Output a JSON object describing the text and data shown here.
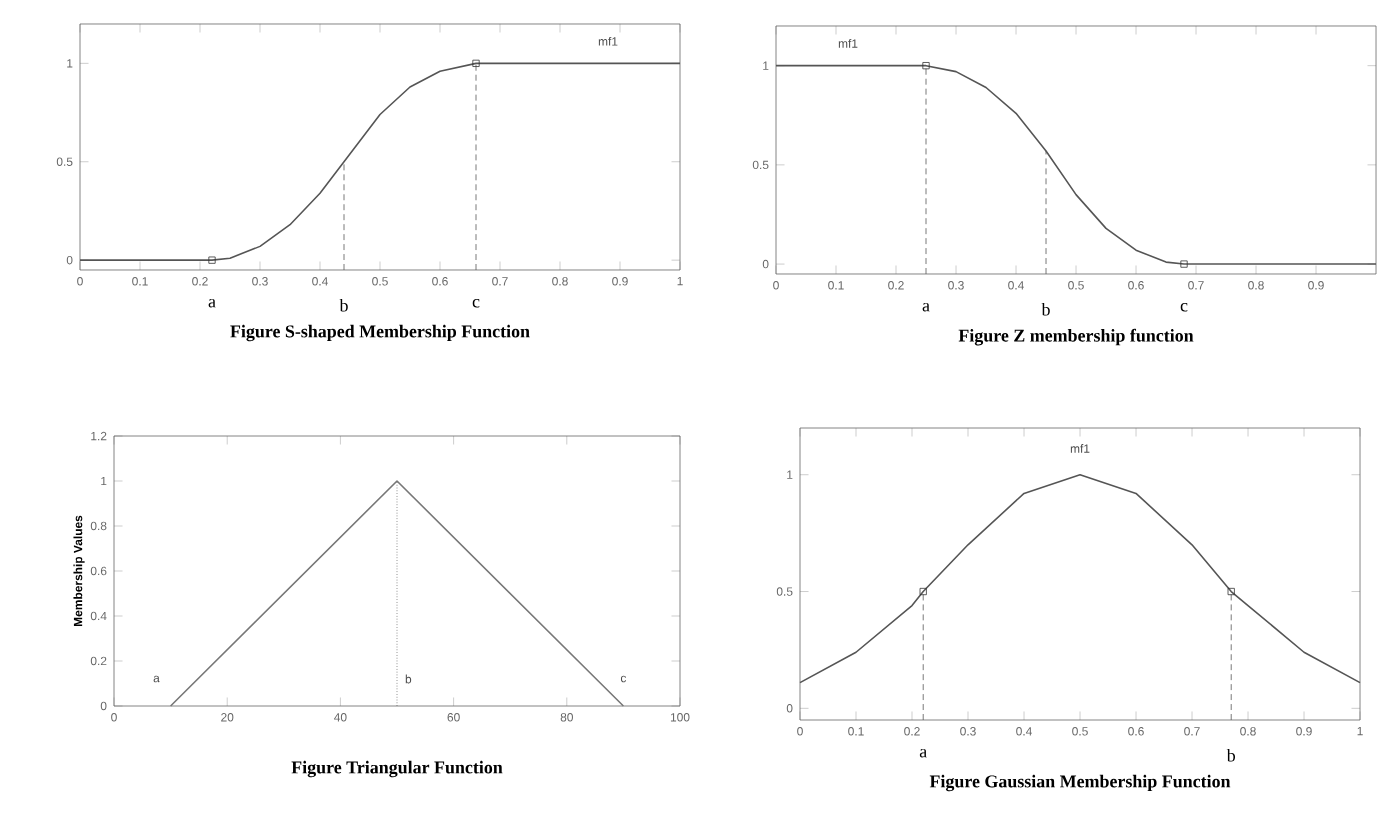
{
  "chart_data": [
    {
      "type": "line",
      "title": "Figure S-shaped Membership Function",
      "xlim": [
        0,
        1
      ],
      "ylim": [
        -0.05,
        1.2
      ],
      "xticks": [
        0,
        0.1,
        0.2,
        0.3,
        0.4,
        0.5,
        0.6,
        0.7,
        0.8,
        0.9,
        1
      ],
      "yticks": [
        0,
        0.5,
        1
      ],
      "series": [
        {
          "type": "line",
          "color": "#555555",
          "x": [
            0,
            0.22,
            0.25,
            0.3,
            0.35,
            0.4,
            0.44,
            0.5,
            0.55,
            0.6,
            0.66,
            1
          ],
          "values": [
            0,
            0,
            0.01,
            0.07,
            0.18,
            0.34,
            0.5,
            0.74,
            0.88,
            0.96,
            1,
            1
          ]
        },
        {
          "type": "scatter",
          "color": "#333333",
          "marker": "square",
          "x": [
            0.22,
            0.66
          ],
          "values": [
            0,
            1
          ]
        },
        {
          "type": "line",
          "color": "#555555",
          "line_style": "dashed",
          "x": [
            0.44,
            0.44
          ],
          "values": [
            -0.05,
            0.5
          ]
        },
        {
          "type": "line",
          "color": "#555555",
          "line_style": "dashed",
          "x": [
            0.66,
            0.66
          ],
          "values": [
            -0.05,
            1
          ]
        }
      ],
      "annotations": [
        "mf1",
        "a",
        "b",
        "c"
      ]
    },
    {
      "type": "line",
      "title": "Figure Z membership function",
      "xlim": [
        0,
        1
      ],
      "ylim": [
        -0.05,
        1.2
      ],
      "xticks": [
        0,
        0.1,
        0.2,
        0.3,
        0.4,
        0.5,
        0.6,
        0.7,
        0.8,
        0.9
      ],
      "yticks": [
        0,
        0.5,
        1
      ],
      "series": [
        {
          "type": "line",
          "color": "#555555",
          "x": [
            0,
            0.25,
            0.3,
            0.35,
            0.4,
            0.45,
            0.5,
            0.55,
            0.6,
            0.65,
            0.68,
            1
          ],
          "values": [
            1,
            1,
            0.97,
            0.89,
            0.76,
            0.57,
            0.35,
            0.18,
            0.07,
            0.01,
            0,
            0
          ]
        },
        {
          "type": "scatter",
          "color": "#333333",
          "marker": "square",
          "x": [
            0.25,
            0.68
          ],
          "values": [
            1,
            0
          ]
        },
        {
          "type": "line",
          "color": "#555555",
          "line_style": "dashed",
          "x": [
            0.25,
            0.25
          ],
          "values": [
            -0.05,
            1
          ]
        },
        {
          "type": "line",
          "color": "#555555",
          "line_style": "dashed",
          "x": [
            0.45,
            0.45
          ],
          "values": [
            -0.05,
            0.57
          ]
        }
      ],
      "annotations": [
        "mf1",
        "a",
        "b",
        "c"
      ]
    },
    {
      "type": "line",
      "title": "Figure Triangular Function",
      "ylabel": "Membership Values",
      "xlim": [
        0,
        100
      ],
      "ylim": [
        0,
        1.2
      ],
      "xticks": [
        0,
        20,
        40,
        60,
        80,
        100
      ],
      "yticks": [
        0,
        0.2,
        0.4,
        0.6,
        0.8,
        1,
        1.2
      ],
      "series": [
        {
          "type": "line",
          "color": "#777777",
          "x": [
            10,
            50,
            90
          ],
          "values": [
            0,
            1,
            0
          ]
        },
        {
          "type": "line",
          "color": "#555555",
          "line_style": "dotted",
          "x": [
            50,
            50
          ],
          "values": [
            0,
            1
          ]
        }
      ],
      "annotations": [
        "a",
        "b",
        "c"
      ]
    },
    {
      "type": "line",
      "title": "Figure Gaussian Membership Function",
      "xlim": [
        0,
        1
      ],
      "ylim": [
        -0.05,
        1.2
      ],
      "xticks": [
        0,
        0.1,
        0.2,
        0.3,
        0.4,
        0.5,
        0.6,
        0.7,
        0.8,
        0.9,
        1
      ],
      "yticks": [
        0,
        0.5,
        1
      ],
      "series": [
        {
          "type": "line",
          "color": "#555555",
          "x": [
            0,
            0.1,
            0.2,
            0.22,
            0.3,
            0.4,
            0.5,
            0.6,
            0.7,
            0.77,
            0.8,
            0.9,
            1
          ],
          "values": [
            0.11,
            0.24,
            0.44,
            0.5,
            0.7,
            0.92,
            1,
            0.92,
            0.7,
            0.5,
            0.44,
            0.24,
            0.11
          ]
        },
        {
          "type": "scatter",
          "color": "#333333",
          "marker": "square",
          "x": [
            0.22,
            0.77
          ],
          "values": [
            0.5,
            0.5
          ]
        },
        {
          "type": "line",
          "color": "#555555",
          "line_style": "dashed",
          "x": [
            0.22,
            0.22
          ],
          "values": [
            -0.05,
            0.5
          ]
        },
        {
          "type": "line",
          "color": "#555555",
          "line_style": "dashed",
          "x": [
            0.77,
            0.77
          ],
          "values": [
            -0.05,
            0.5
          ]
        }
      ],
      "annotations": [
        "mf1",
        "a",
        "b"
      ]
    }
  ]
}
